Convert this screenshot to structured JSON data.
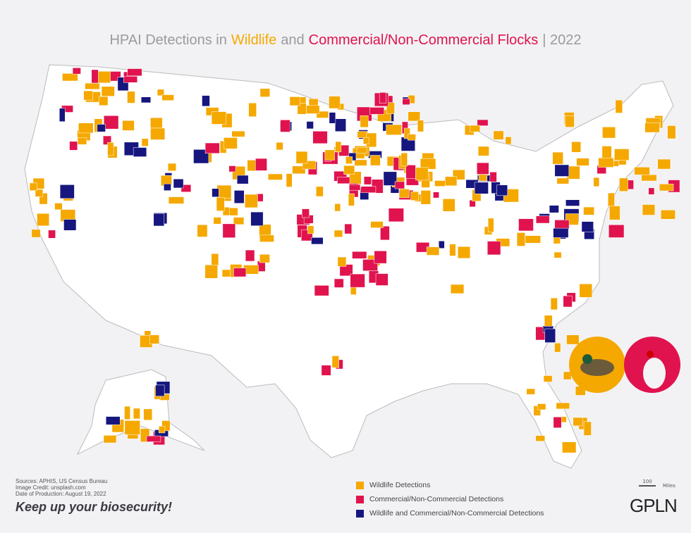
{
  "title": {
    "prefix": "HPAI Detections in",
    "wildlife": "Wildlife",
    "and": "and",
    "flocks": "Commercial/Non-Commercial Flocks",
    "year": "| 2022"
  },
  "legend": [
    {
      "label": "Wildlife Detections",
      "color": "#f5a800"
    },
    {
      "label": "Commercial/Non-Commercial Detections",
      "color": "#e0134e"
    },
    {
      "label": "Wildlife and Commercial/Non-Commercial Detections",
      "color": "#16167e"
    }
  ],
  "footer": {
    "sources": "Sources: APHIS, US Census Bureau",
    "credit": "Image Credit: unsplash.com",
    "date": "Date of Production: August 19, 2022",
    "slogan": "Keep up your biosecurity!"
  },
  "scale": {
    "distance": "100",
    "unit": "Miles"
  },
  "logo": "GPLN"
}
